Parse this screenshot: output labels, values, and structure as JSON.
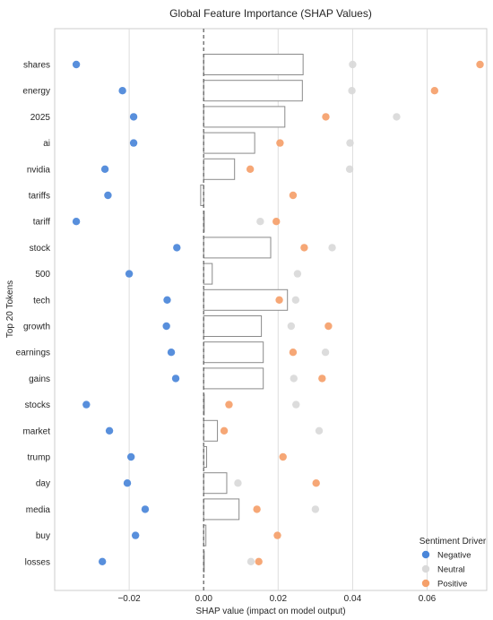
{
  "chart_data": {
    "type": "bar+scatter",
    "title": "Global Feature Importance (SHAP Values)",
    "xlabel": "SHAP value (impact on model output)",
    "ylabel": "Top 20 Tokens",
    "xlim": [
      -0.04,
      0.076
    ],
    "xticks": [
      -0.02,
      0.0,
      0.02,
      0.04,
      0.06
    ],
    "xtick_labels": [
      "−0.02",
      "0.00",
      "0.02",
      "0.04",
      "0.06"
    ],
    "grid": "vertical",
    "zero_line": "dashed",
    "categories": [
      "shares",
      "energy",
      "2025",
      "ai",
      "nvidia",
      "tariffs",
      "tariff",
      "stock",
      "500",
      "tech",
      "growth",
      "earnings",
      "gains",
      "stocks",
      "market",
      "trump",
      "day",
      "media",
      "buy",
      "losses"
    ],
    "bar_values": [
      0.0267,
      0.0265,
      0.0218,
      0.0137,
      0.0083,
      -0.0008,
      0.0,
      0.018,
      0.0023,
      0.0225,
      0.0155,
      0.016,
      0.016,
      0.0,
      0.0037,
      0.0008,
      0.0062,
      0.0095,
      0.0006,
      0.0
    ],
    "series": [
      {
        "name": "Negative",
        "color": "#4a86d9",
        "values": [
          -0.0342,
          -0.0218,
          -0.0188,
          -0.0188,
          -0.0265,
          -0.0257,
          -0.0342,
          -0.0072,
          -0.02,
          -0.0098,
          -0.01,
          -0.0087,
          -0.0075,
          -0.0315,
          -0.0253,
          -0.0195,
          -0.0205,
          -0.0157,
          -0.0183,
          -0.0272
        ]
      },
      {
        "name": "Neutral",
        "color": "#d9d9d9",
        "values": [
          0.04,
          0.0398,
          0.0518,
          0.0393,
          0.0392,
          null,
          0.0152,
          0.0345,
          0.0252,
          0.0247,
          0.0235,
          0.0327,
          0.0242,
          0.0248,
          0.031,
          null,
          0.0092,
          0.03,
          null,
          0.0127
        ]
      },
      {
        "name": "Positive",
        "color": "#f5a06a",
        "values": [
          0.0742,
          0.062,
          0.0328,
          0.0205,
          0.0125,
          0.024,
          0.0195,
          0.027,
          null,
          0.0203,
          0.0335,
          0.024,
          0.0318,
          0.0068,
          0.0055,
          0.0213,
          0.0302,
          0.0143,
          0.0198,
          0.0148
        ]
      }
    ],
    "legend": {
      "title": "Sentiment Driver",
      "placement": "bottom-right",
      "entries": [
        "Negative",
        "Neutral",
        "Positive"
      ]
    }
  }
}
